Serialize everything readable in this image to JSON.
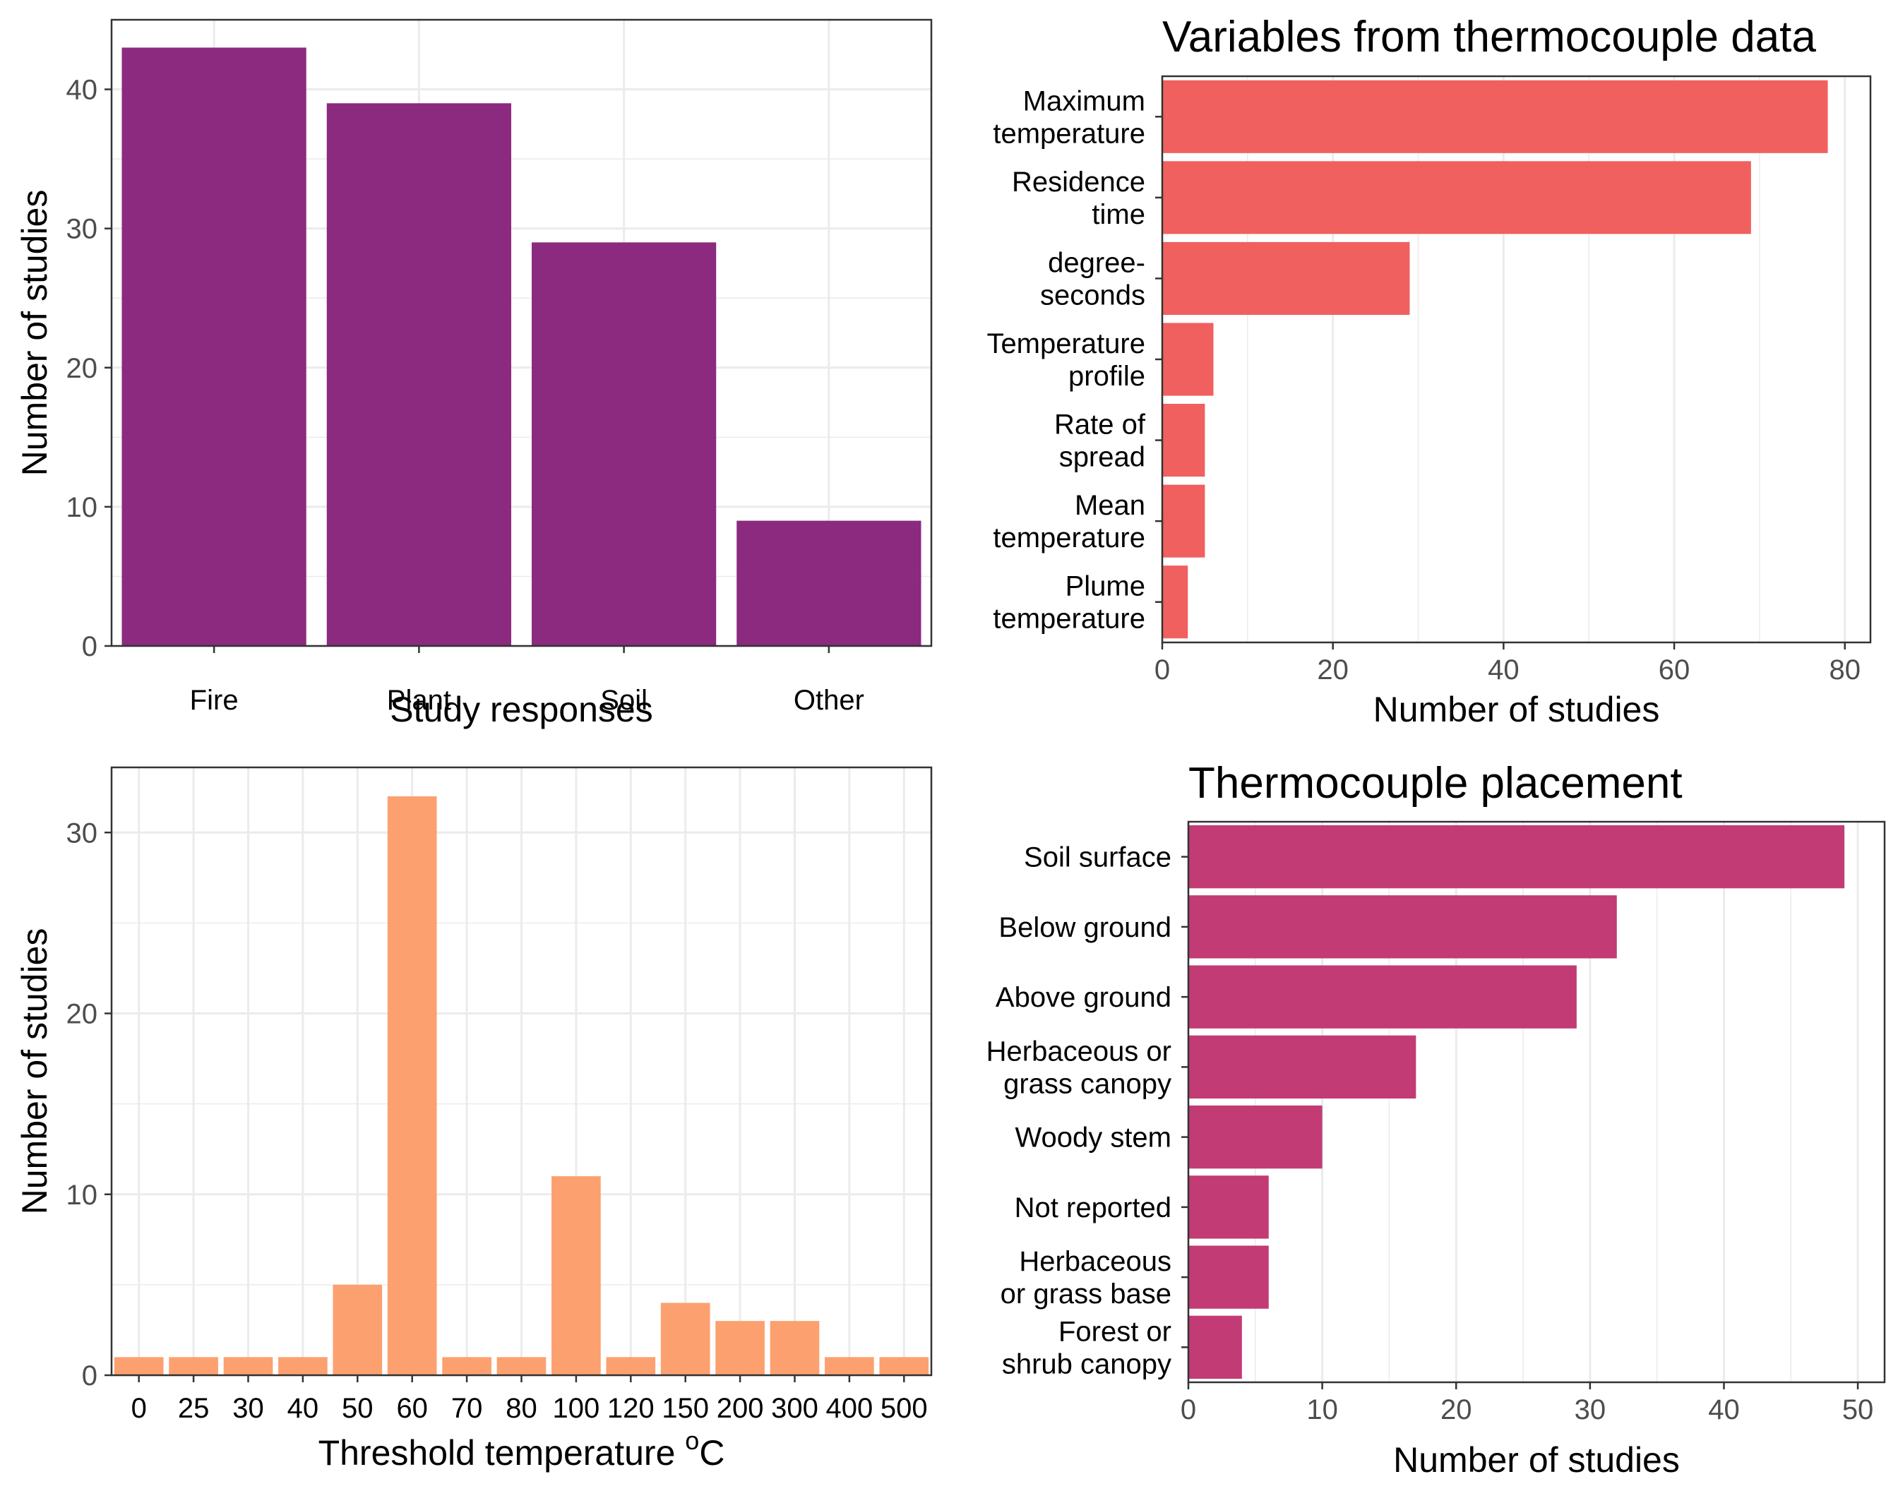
{
  "colors": {
    "panel_a_bar": "#8B2A7E",
    "panel_b_bar": "#F0605E",
    "panel_c_bar": "#FCA06F",
    "panel_d_bar": "#C23B74",
    "grid": "#EBEBEB",
    "border": "#333333"
  },
  "chart_data": [
    {
      "id": "responses",
      "type": "bar",
      "orientation": "vertical",
      "title": "",
      "xlabel": "Study responses",
      "ylabel": "Number of studies",
      "categories": [
        "Fire",
        "Plant",
        "Soil",
        "Other"
      ],
      "values": [
        43,
        39,
        29,
        9
      ],
      "ylim": [
        0,
        45
      ],
      "yticks": [
        0,
        10,
        20,
        30,
        40
      ],
      "grid": true
    },
    {
      "id": "variables",
      "type": "bar",
      "orientation": "horizontal",
      "title": "Variables from thermocouple data",
      "xlabel": "Number of studies",
      "ylabel": "",
      "categories": [
        [
          "Maximum",
          "temperature"
        ],
        [
          "Residence",
          "time"
        ],
        [
          "degree-",
          "seconds"
        ],
        [
          "Temperature",
          "profile"
        ],
        [
          "Rate of",
          "spread"
        ],
        [
          "Mean",
          "temperature"
        ],
        [
          "Plume",
          "temperature"
        ]
      ],
      "values": [
        78,
        69,
        29,
        6,
        5,
        5,
        3
      ],
      "xlim": [
        0,
        83
      ],
      "xticks": [
        0,
        20,
        40,
        60,
        80
      ],
      "grid": true
    },
    {
      "id": "threshold",
      "type": "bar",
      "orientation": "vertical",
      "title": "",
      "xlabel": "Threshold temperature °C",
      "ylabel": "Number of studies",
      "categories": [
        "0",
        "25",
        "30",
        "40",
        "50",
        "60",
        "70",
        "80",
        "100",
        "120",
        "150",
        "200",
        "300",
        "400",
        "500"
      ],
      "values": [
        1,
        1,
        1,
        1,
        5,
        32,
        1,
        1,
        11,
        1,
        4,
        3,
        3,
        1,
        1
      ],
      "ylim": [
        0,
        33.6
      ],
      "yticks": [
        0,
        10,
        20,
        30
      ],
      "grid": true
    },
    {
      "id": "placement",
      "type": "bar",
      "orientation": "horizontal",
      "title": "Thermocouple placement",
      "xlabel": "Number of studies",
      "ylabel": "",
      "categories": [
        [
          "Soil surface"
        ],
        [
          "Below ground"
        ],
        [
          "Above ground"
        ],
        [
          "Herbaceous or",
          "grass canopy"
        ],
        [
          "Woody stem"
        ],
        [
          "Not reported"
        ],
        [
          "Herbaceous",
          "or grass base"
        ],
        [
          "Forest or",
          "shrub canopy"
        ]
      ],
      "values": [
        49,
        32,
        29,
        17,
        10,
        6,
        6,
        4
      ],
      "xlim": [
        0,
        52
      ],
      "xticks": [
        0,
        10,
        20,
        30,
        40,
        50
      ],
      "grid": true
    }
  ]
}
